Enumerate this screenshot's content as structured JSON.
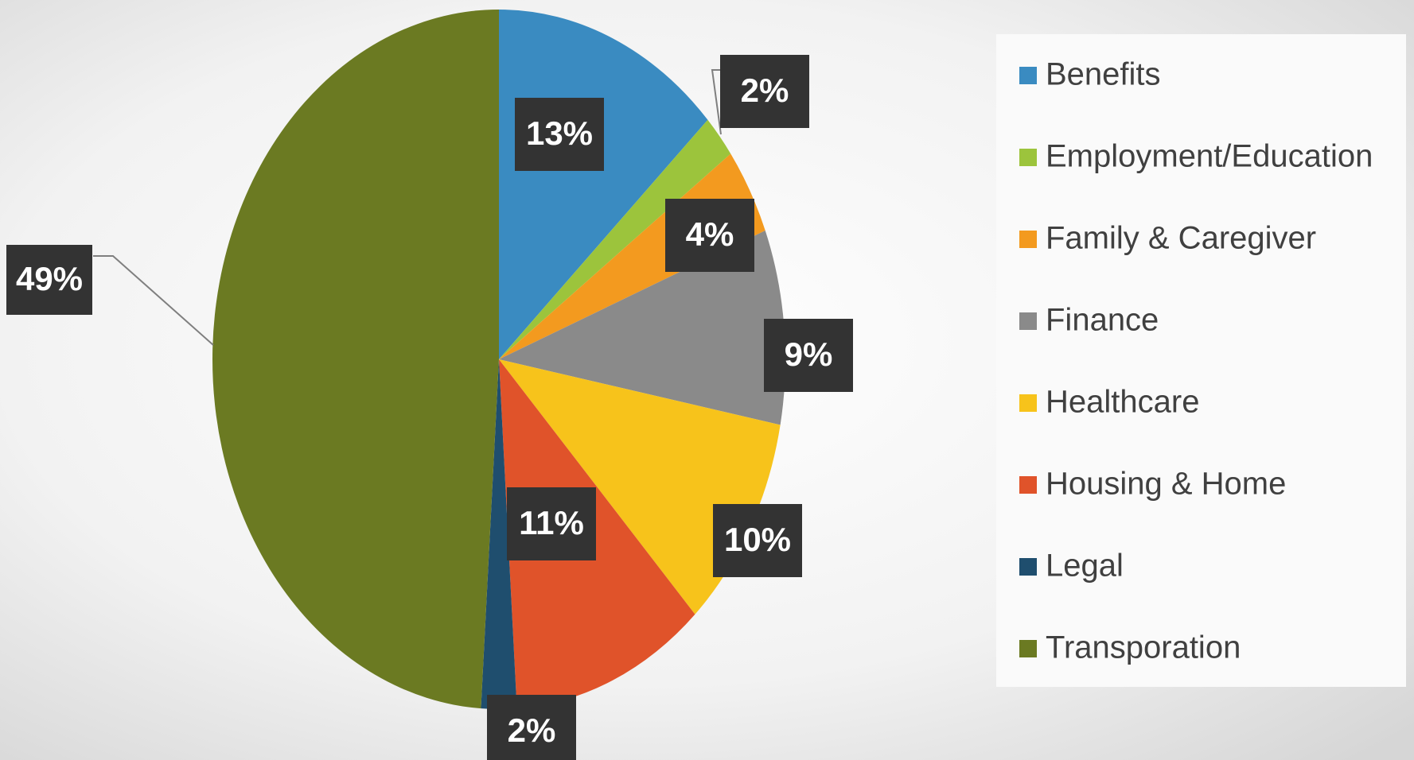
{
  "chart_data": {
    "type": "pie",
    "categories": [
      "Benefits",
      "Employment/Education",
      "Family & Caregiver",
      "Finance",
      "Healthcare",
      "Housing & Home",
      "Legal",
      "Transporation"
    ],
    "values": [
      13,
      2,
      4,
      9,
      10,
      11,
      2,
      49
    ],
    "value_labels": [
      "13%",
      "2%",
      "4%",
      "9%",
      "10%",
      "11%",
      "2%",
      "49%"
    ],
    "colors": [
      "#3a8bc1",
      "#9cc43c",
      "#f39a1f",
      "#8a8a8a",
      "#f7c31b",
      "#e0532a",
      "#1f4e6e",
      "#6b7a22"
    ],
    "legend": "right"
  }
}
